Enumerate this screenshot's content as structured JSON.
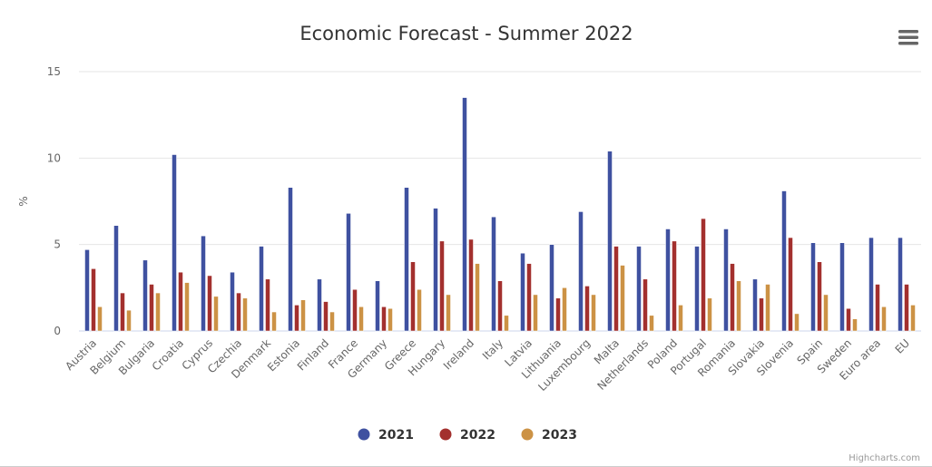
{
  "chart_data": {
    "type": "bar",
    "title": "Economic Forecast - Summer 2022",
    "xlabel": "",
    "ylabel": "%",
    "ylim": [
      0,
      15
    ],
    "yticks": [
      "0",
      "5",
      "10",
      "15"
    ],
    "grid": true,
    "legend_position": "bottom-center",
    "categories": [
      "Austria",
      "Belgium",
      "Bulgaria",
      "Croatia",
      "Cyprus",
      "Czechia",
      "Denmark",
      "Estonia",
      "Finland",
      "France",
      "Germany",
      "Greece",
      "Hungary",
      "Ireland",
      "Italy",
      "Latvia",
      "Lithuania",
      "Luxembourg",
      "Malta",
      "Netherlands",
      "Poland",
      "Portugal",
      "Romania",
      "Slovakia",
      "Slovenia",
      "Spain",
      "Sweden",
      "Euro area",
      "EU"
    ],
    "series": [
      {
        "name": "2021",
        "color": "#3f51a0",
        "values": [
          4.7,
          6.1,
          4.1,
          10.2,
          5.5,
          3.4,
          4.9,
          8.3,
          3.0,
          6.8,
          2.9,
          8.3,
          7.1,
          13.5,
          6.6,
          4.5,
          5.0,
          6.9,
          10.4,
          4.9,
          5.9,
          4.9,
          5.9,
          3.0,
          8.1,
          5.1,
          5.1,
          5.4,
          5.4
        ]
      },
      {
        "name": "2022",
        "color": "#a3302e",
        "values": [
          3.6,
          2.2,
          2.7,
          3.4,
          3.2,
          2.2,
          3.0,
          1.5,
          1.7,
          2.4,
          1.4,
          4.0,
          5.2,
          5.3,
          2.9,
          3.9,
          1.9,
          2.6,
          4.9,
          3.0,
          5.2,
          6.5,
          3.9,
          1.9,
          5.4,
          4.0,
          1.3,
          2.7,
          2.7
        ]
      },
      {
        "name": "2023",
        "color": "#cc9245",
        "values": [
          1.4,
          1.2,
          2.2,
          2.8,
          2.0,
          1.9,
          1.1,
          1.8,
          1.1,
          1.4,
          1.3,
          2.4,
          2.1,
          3.9,
          0.9,
          2.1,
          2.5,
          2.1,
          3.8,
          0.9,
          1.5,
          1.9,
          2.9,
          2.7,
          1.0,
          2.1,
          0.7,
          1.4,
          1.5
        ]
      }
    ]
  },
  "menu_icon": "hamburger-menu-icon",
  "credits": "Highcharts.com"
}
